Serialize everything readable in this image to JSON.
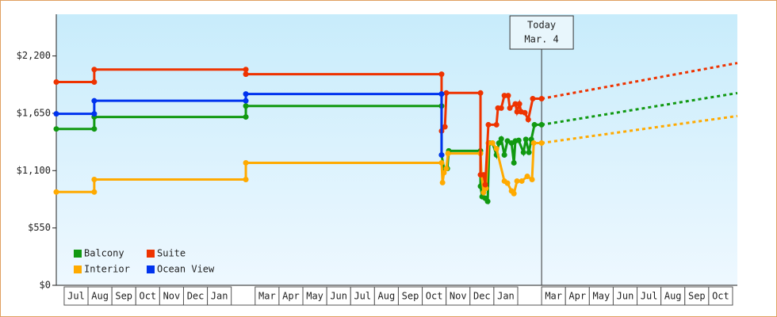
{
  "chart_data": {
    "type": "line",
    "xlim": [
      -0.33,
      28.2
    ],
    "ylim": [
      0,
      2600
    ],
    "yticks": [
      {
        "value": 0,
        "label": "$0"
      },
      {
        "value": 550,
        "label": "$550"
      },
      {
        "value": 1100,
        "label": "$1,100"
      },
      {
        "value": 1650,
        "label": "$1,650"
      },
      {
        "value": 2200,
        "label": "$2,200"
      }
    ],
    "xticks": [
      {
        "value": 0.5,
        "label": "Jul"
      },
      {
        "value": 1.5,
        "label": "Aug"
      },
      {
        "value": 2.5,
        "label": "Sep"
      },
      {
        "value": 3.5,
        "label": "Oct"
      },
      {
        "value": 4.5,
        "label": "Nov"
      },
      {
        "value": 5.5,
        "label": "Dec"
      },
      {
        "value": 6.5,
        "label": "Jan"
      },
      {
        "value": 8.5,
        "label": "Mar"
      },
      {
        "value": 9.5,
        "label": "Apr"
      },
      {
        "value": 10.5,
        "label": "May"
      },
      {
        "value": 11.5,
        "label": "Jun"
      },
      {
        "value": 12.5,
        "label": "Jul"
      },
      {
        "value": 13.5,
        "label": "Aug"
      },
      {
        "value": 14.5,
        "label": "Sep"
      },
      {
        "value": 15.5,
        "label": "Oct"
      },
      {
        "value": 16.5,
        "label": "Nov"
      },
      {
        "value": 17.5,
        "label": "Dec"
      },
      {
        "value": 18.5,
        "label": "Jan"
      },
      {
        "value": 20.5,
        "label": "Mar"
      },
      {
        "value": 21.5,
        "label": "Apr"
      },
      {
        "value": 22.5,
        "label": "May"
      },
      {
        "value": 23.5,
        "label": "Jun"
      },
      {
        "value": 24.5,
        "label": "Jul"
      },
      {
        "value": 25.5,
        "label": "Aug"
      },
      {
        "value": 26.5,
        "label": "Sep"
      },
      {
        "value": 27.5,
        "label": "Oct"
      }
    ],
    "legend": "lower left",
    "annotation": {
      "lines": [
        "Today",
        "Mar. 4"
      ],
      "x": 20.0
    },
    "projection_x": [
      20.0,
      28.2
    ],
    "series": [
      {
        "name": "Balcony",
        "color": "#119911",
        "x": [
          -0.33,
          1.26,
          1.26,
          7.61,
          7.61,
          15.81,
          15.81,
          15.91,
          16.05,
          16.11,
          17.44,
          17.44,
          17.51,
          17.64,
          17.74,
          17.81,
          17.94,
          18.11,
          18.21,
          18.31,
          18.44,
          18.57,
          18.74,
          18.84,
          18.9,
          19.04,
          19.24,
          19.34,
          19.47,
          19.57,
          19.7,
          20.0
        ],
        "values": [
          1500,
          1500,
          1615,
          1615,
          1720,
          1720,
          1250,
          1120,
          1120,
          1290,
          1290,
          950,
          850,
          835,
          805,
          1365,
          1365,
          1250,
          1365,
          1405,
          1250,
          1385,
          1365,
          1175,
          1385,
          1390,
          1275,
          1400,
          1275,
          1400,
          1540,
          1540
        ],
        "projection_values": [
          1540,
          1844
        ]
      },
      {
        "name": "Interior",
        "color": "#ffaa00",
        "x": [
          -0.33,
          1.26,
          1.26,
          7.61,
          7.61,
          15.81,
          15.85,
          15.91,
          16.01,
          16.08,
          17.44,
          17.48,
          17.57,
          17.67,
          17.77,
          17.94,
          18.11,
          18.44,
          18.57,
          18.74,
          18.84,
          18.97,
          19.17,
          19.4,
          19.6,
          19.67,
          20.0
        ],
        "values": [
          895,
          895,
          1015,
          1015,
          1175,
          1175,
          985,
          1080,
          1120,
          1265,
          1265,
          1060,
          890,
          930,
          1365,
          1365,
          1310,
          1000,
          980,
          905,
          880,
          1000,
          1000,
          1045,
          1015,
          1365,
          1365
        ],
        "projection_values": [
          1365,
          1624
        ]
      },
      {
        "name": "Suite",
        "color": "#ee3300",
        "x": [
          -0.33,
          1.26,
          1.26,
          7.61,
          7.61,
          15.81,
          15.81,
          15.95,
          16.01,
          17.44,
          17.44,
          17.57,
          17.64,
          17.77,
          18.11,
          18.17,
          18.31,
          18.44,
          18.6,
          18.67,
          18.9,
          18.97,
          19.07,
          19.14,
          19.3,
          19.44,
          19.63,
          20.0
        ],
        "values": [
          1950,
          1950,
          2070,
          2070,
          2025,
          2025,
          1480,
          1520,
          1845,
          1845,
          1060,
          1060,
          965,
          1540,
          1540,
          1700,
          1700,
          1820,
          1820,
          1700,
          1740,
          1665,
          1740,
          1665,
          1655,
          1590,
          1790,
          1790
        ],
        "projection_values": [
          1790,
          2132
        ]
      },
      {
        "name": "Ocean View",
        "color": "#0033ee",
        "x": [
          -0.33,
          1.26,
          1.26,
          7.61,
          7.61,
          15.81,
          15.81
        ],
        "values": [
          1645,
          1645,
          1770,
          1770,
          1835,
          1835,
          1250
        ]
      }
    ]
  }
}
